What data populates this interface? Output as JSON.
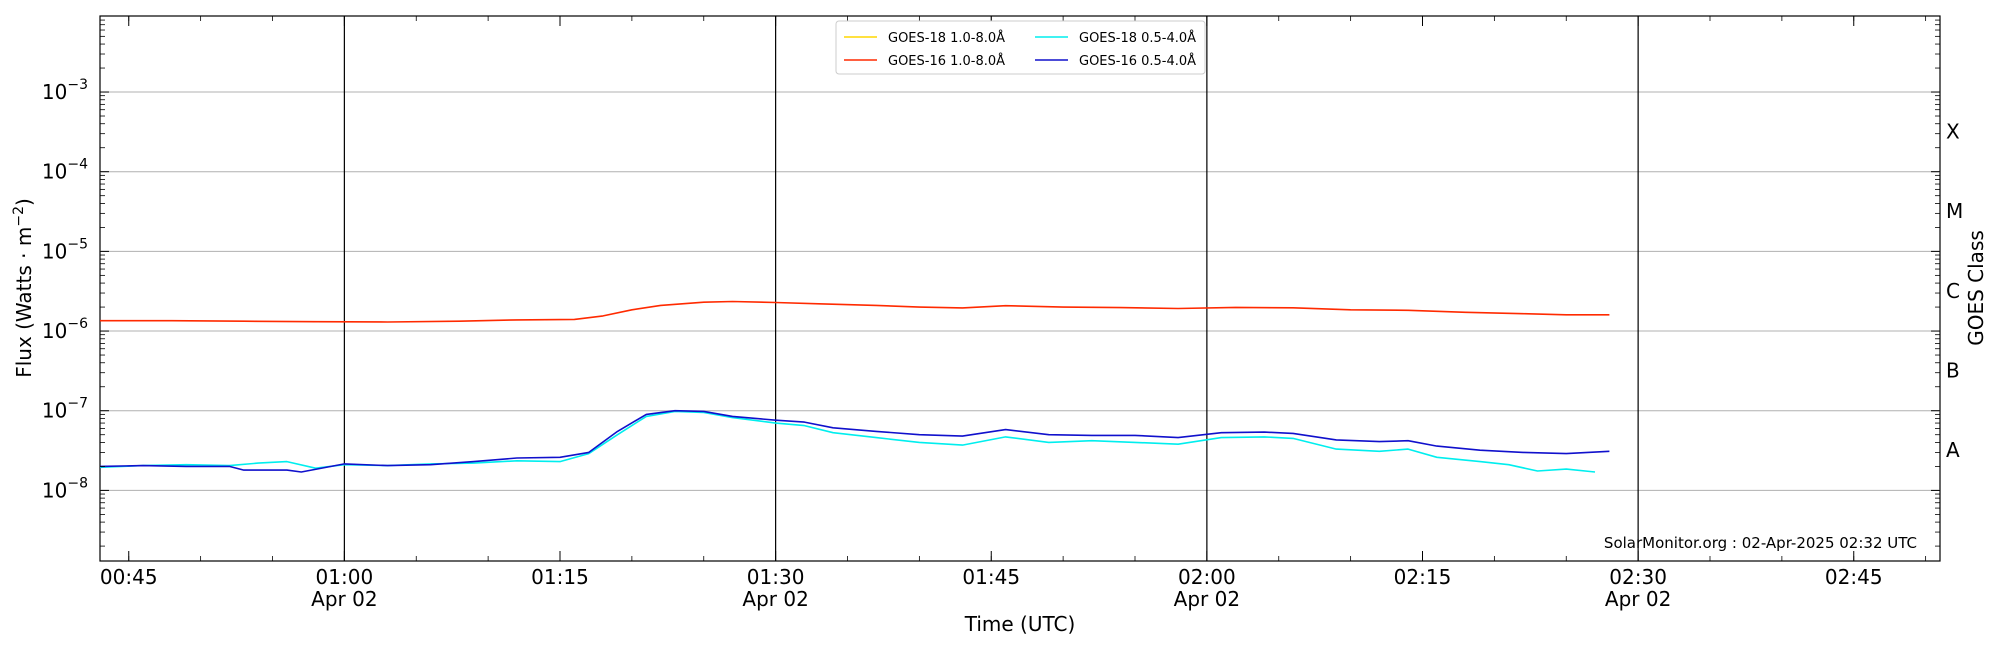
{
  "chart_data": {
    "type": "line",
    "xlabel": "Time (UTC)",
    "ylabel_main": "Flux (Watts · m",
    "ylabel_sup": "−2",
    "ylabel_close": ")",
    "y2label": "GOES Class",
    "yscale": "log",
    "ylim": [
      1.3e-09,
      0.009
    ],
    "xlim": [
      "2025-04-02T00:43",
      "2025-04-02T02:51"
    ],
    "grid": "horizontal at decades",
    "legend": "top-center",
    "x_ticks": [
      {
        "time": "2025-04-02T00:45",
        "label": "00:45",
        "sub": ""
      },
      {
        "time": "2025-04-02T01:00",
        "label": "01:00",
        "sub": "Apr 02"
      },
      {
        "time": "2025-04-02T01:15",
        "label": "01:15",
        "sub": ""
      },
      {
        "time": "2025-04-02T01:30",
        "label": "01:30",
        "sub": "Apr 02"
      },
      {
        "time": "2025-04-02T01:45",
        "label": "01:45",
        "sub": ""
      },
      {
        "time": "2025-04-02T02:00",
        "label": "02:00",
        "sub": "Apr 02"
      },
      {
        "time": "2025-04-02T02:15",
        "label": "02:15",
        "sub": ""
      },
      {
        "time": "2025-04-02T02:30",
        "label": "02:30",
        "sub": "Apr 02"
      },
      {
        "time": "2025-04-02T02:45",
        "label": "02:45",
        "sub": ""
      }
    ],
    "day_lines": [
      "2025-04-02T01:00",
      "2025-04-02T01:30",
      "2025-04-02T02:00",
      "2025-04-02T02:30"
    ],
    "y_ticks": [
      {
        "value": 1e-08,
        "mantissa": "10",
        "exp": "−8"
      },
      {
        "value": 1e-07,
        "mantissa": "10",
        "exp": "−7"
      },
      {
        "value": 1e-06,
        "mantissa": "10",
        "exp": "−6"
      },
      {
        "value": 1e-05,
        "mantissa": "10",
        "exp": "−5"
      },
      {
        "value": 0.0001,
        "mantissa": "10",
        "exp": "−4"
      },
      {
        "value": 0.001,
        "mantissa": "10",
        "exp": "−3"
      }
    ],
    "class_labels": [
      {
        "label": "A",
        "value": 3.2e-08
      },
      {
        "label": "B",
        "value": 3.2e-07
      },
      {
        "label": "C",
        "value": 3.2e-06
      },
      {
        "label": "M",
        "value": 3.2e-05
      },
      {
        "label": "X",
        "value": 0.00032
      }
    ],
    "footer": "SolarMonitor.org : 02-Apr-2025 02:32 UTC",
    "series": [
      {
        "name": "GOES-18 1.0-8.0Å",
        "color": "#ffd700",
        "points": []
      },
      {
        "name": "GOES-16 1.0-8.0Å",
        "color": "#ff2a00",
        "points": [
          [
            "2025-04-02T00:43",
            1.35e-06
          ],
          [
            "2025-04-02T00:48",
            1.35e-06
          ],
          [
            "2025-04-02T00:53",
            1.33e-06
          ],
          [
            "2025-04-02T00:58",
            1.31e-06
          ],
          [
            "2025-04-02T01:03",
            1.3e-06
          ],
          [
            "2025-04-02T01:08",
            1.33e-06
          ],
          [
            "2025-04-02T01:12",
            1.38e-06
          ],
          [
            "2025-04-02T01:16",
            1.4e-06
          ],
          [
            "2025-04-02T01:18",
            1.55e-06
          ],
          [
            "2025-04-02T01:20",
            1.85e-06
          ],
          [
            "2025-04-02T01:22",
            2.1e-06
          ],
          [
            "2025-04-02T01:25",
            2.3e-06
          ],
          [
            "2025-04-02T01:27",
            2.35e-06
          ],
          [
            "2025-04-02T01:30",
            2.28e-06
          ],
          [
            "2025-04-02T01:33",
            2.2e-06
          ],
          [
            "2025-04-02T01:37",
            2.1e-06
          ],
          [
            "2025-04-02T01:40",
            2e-06
          ],
          [
            "2025-04-02T01:43",
            1.95e-06
          ],
          [
            "2025-04-02T01:46",
            2.08e-06
          ],
          [
            "2025-04-02T01:50",
            2e-06
          ],
          [
            "2025-04-02T01:54",
            1.97e-06
          ],
          [
            "2025-04-02T01:58",
            1.92e-06
          ],
          [
            "2025-04-02T02:02",
            1.98e-06
          ],
          [
            "2025-04-02T02:06",
            1.96e-06
          ],
          [
            "2025-04-02T02:10",
            1.85e-06
          ],
          [
            "2025-04-02T02:14",
            1.82e-06
          ],
          [
            "2025-04-02T02:18",
            1.72e-06
          ],
          [
            "2025-04-02T02:22",
            1.65e-06
          ],
          [
            "2025-04-02T02:25",
            1.6e-06
          ],
          [
            "2025-04-02T02:28",
            1.6e-06
          ]
        ]
      },
      {
        "name": "GOES-18 0.5-4.0Å",
        "color": "#00eeee",
        "points": [
          [
            "2025-04-02T00:43",
            1.95e-08
          ],
          [
            "2025-04-02T00:46",
            2.05e-08
          ],
          [
            "2025-04-02T00:49",
            2.1e-08
          ],
          [
            "2025-04-02T00:52",
            2.05e-08
          ],
          [
            "2025-04-02T00:54",
            2.2e-08
          ],
          [
            "2025-04-02T00:56",
            2.3e-08
          ],
          [
            "2025-04-02T00:58",
            1.9e-08
          ],
          [
            "2025-04-02T01:00",
            2.1e-08
          ],
          [
            "2025-04-02T01:03",
            2.05e-08
          ],
          [
            "2025-04-02T01:06",
            2.15e-08
          ],
          [
            "2025-04-02T01:09",
            2.2e-08
          ],
          [
            "2025-04-02T01:12",
            2.35e-08
          ],
          [
            "2025-04-02T01:15",
            2.3e-08
          ],
          [
            "2025-04-02T01:17",
            2.9e-08
          ],
          [
            "2025-04-02T01:19",
            5e-08
          ],
          [
            "2025-04-02T01:21",
            8.5e-08
          ],
          [
            "2025-04-02T01:23",
            9.8e-08
          ],
          [
            "2025-04-02T01:25",
            9.5e-08
          ],
          [
            "2025-04-02T01:27",
            8.2e-08
          ],
          [
            "2025-04-02T01:30",
            7e-08
          ],
          [
            "2025-04-02T01:32",
            6.5e-08
          ],
          [
            "2025-04-02T01:34",
            5.3e-08
          ],
          [
            "2025-04-02T01:37",
            4.6e-08
          ],
          [
            "2025-04-02T01:40",
            4e-08
          ],
          [
            "2025-04-02T01:43",
            3.7e-08
          ],
          [
            "2025-04-02T01:46",
            4.7e-08
          ],
          [
            "2025-04-02T01:49",
            4e-08
          ],
          [
            "2025-04-02T01:52",
            4.2e-08
          ],
          [
            "2025-04-02T01:55",
            4e-08
          ],
          [
            "2025-04-02T01:58",
            3.8e-08
          ],
          [
            "2025-04-02T02:01",
            4.6e-08
          ],
          [
            "2025-04-02T02:04",
            4.7e-08
          ],
          [
            "2025-04-02T02:06",
            4.5e-08
          ],
          [
            "2025-04-02T02:09",
            3.3e-08
          ],
          [
            "2025-04-02T02:12",
            3.1e-08
          ],
          [
            "2025-04-02T02:14",
            3.3e-08
          ],
          [
            "2025-04-02T02:16",
            2.6e-08
          ],
          [
            "2025-04-02T02:19",
            2.3e-08
          ],
          [
            "2025-04-02T02:21",
            2.1e-08
          ],
          [
            "2025-04-02T02:23",
            1.75e-08
          ],
          [
            "2025-04-02T02:25",
            1.85e-08
          ],
          [
            "2025-04-02T02:27",
            1.7e-08
          ]
        ]
      },
      {
        "name": "GOES-16 0.5-4.0Å",
        "color": "#1010cc",
        "points": [
          [
            "2025-04-02T00:43",
            2e-08
          ],
          [
            "2025-04-02T00:46",
            2.05e-08
          ],
          [
            "2025-04-02T00:49",
            2e-08
          ],
          [
            "2025-04-02T00:52",
            2e-08
          ],
          [
            "2025-04-02T00:53",
            1.8e-08
          ],
          [
            "2025-04-02T00:56",
            1.8e-08
          ],
          [
            "2025-04-02T00:57",
            1.7e-08
          ],
          [
            "2025-04-02T01:00",
            2.15e-08
          ],
          [
            "2025-04-02T01:03",
            2.05e-08
          ],
          [
            "2025-04-02T01:06",
            2.1e-08
          ],
          [
            "2025-04-02T01:09",
            2.3e-08
          ],
          [
            "2025-04-02T01:12",
            2.55e-08
          ],
          [
            "2025-04-02T01:15",
            2.6e-08
          ],
          [
            "2025-04-02T01:17",
            3e-08
          ],
          [
            "2025-04-02T01:19",
            5.5e-08
          ],
          [
            "2025-04-02T01:21",
            9e-08
          ],
          [
            "2025-04-02T01:23",
            1e-07
          ],
          [
            "2025-04-02T01:25",
            9.8e-08
          ],
          [
            "2025-04-02T01:27",
            8.5e-08
          ],
          [
            "2025-04-02T01:30",
            7.6e-08
          ],
          [
            "2025-04-02T01:32",
            7.2e-08
          ],
          [
            "2025-04-02T01:34",
            6.1e-08
          ],
          [
            "2025-04-02T01:37",
            5.5e-08
          ],
          [
            "2025-04-02T01:40",
            5e-08
          ],
          [
            "2025-04-02T01:43",
            4.8e-08
          ],
          [
            "2025-04-02T01:46",
            5.8e-08
          ],
          [
            "2025-04-02T01:49",
            5e-08
          ],
          [
            "2025-04-02T01:52",
            4.9e-08
          ],
          [
            "2025-04-02T01:55",
            4.9e-08
          ],
          [
            "2025-04-02T01:58",
            4.6e-08
          ],
          [
            "2025-04-02T02:01",
            5.3e-08
          ],
          [
            "2025-04-02T02:04",
            5.4e-08
          ],
          [
            "2025-04-02T02:06",
            5.2e-08
          ],
          [
            "2025-04-02T02:09",
            4.3e-08
          ],
          [
            "2025-04-02T02:12",
            4.1e-08
          ],
          [
            "2025-04-02T02:14",
            4.2e-08
          ],
          [
            "2025-04-02T02:16",
            3.6e-08
          ],
          [
            "2025-04-02T02:19",
            3.2e-08
          ],
          [
            "2025-04-02T02:22",
            3e-08
          ],
          [
            "2025-04-02T02:25",
            2.9e-08
          ],
          [
            "2025-04-02T02:28",
            3.1e-08
          ]
        ]
      }
    ]
  }
}
